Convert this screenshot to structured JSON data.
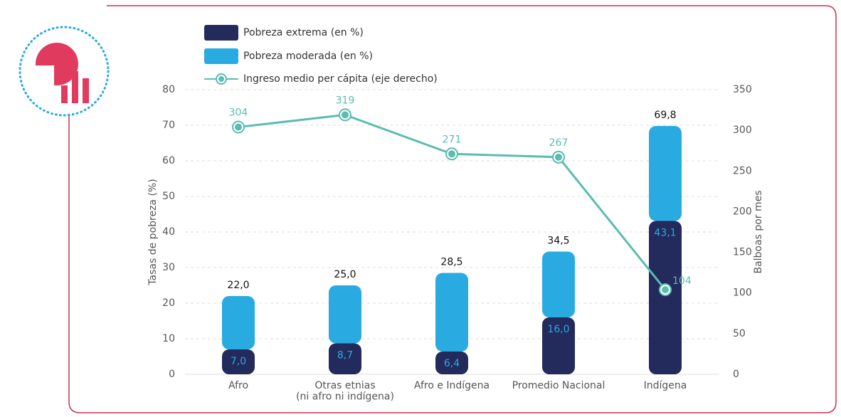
{
  "chart_data": {
    "type": "bar",
    "stacked": true,
    "categories": [
      "Afro",
      "Otras etnias\n(ni afro ni indígena)",
      "Afro e Indígena",
      "Promedio Nacional",
      "Indígena"
    ],
    "series": [
      {
        "name": "Pobreza extrema (en %)",
        "color": "#232a5c",
        "values": [
          7.0,
          8.7,
          6.4,
          16.0,
          43.1
        ],
        "value_labels": [
          "7,0",
          "8,7",
          "6,4",
          "16,0",
          "43,1"
        ],
        "label_color": "#29abe2"
      },
      {
        "name": "Pobreza moderada (en %)",
        "color": "#29abe2",
        "values": [
          15.0,
          16.3,
          22.1,
          18.5,
          26.7
        ]
      },
      {
        "name": "Ingreso medio per cápita (eje derecho)",
        "type": "line",
        "axis": "y2",
        "color": "#5bbcb0",
        "values": [
          304,
          319,
          271,
          267,
          104
        ]
      }
    ],
    "totals": [
      22.0,
      25.0,
      28.5,
      34.5,
      69.8
    ],
    "total_labels": [
      "22,0",
      "25,0",
      "28,5",
      "34,5",
      "69,8"
    ],
    "ylabel": "Tasas de pobreza (%)",
    "y2label": "Balboas por mes",
    "ylim": [
      0,
      80
    ],
    "yticks": [
      0,
      10,
      20,
      30,
      40,
      50,
      60,
      70,
      80
    ],
    "y2lim": [
      0,
      350
    ],
    "y2ticks": [
      0,
      50,
      100,
      150,
      200,
      250,
      300,
      350
    ],
    "grid": true
  }
}
